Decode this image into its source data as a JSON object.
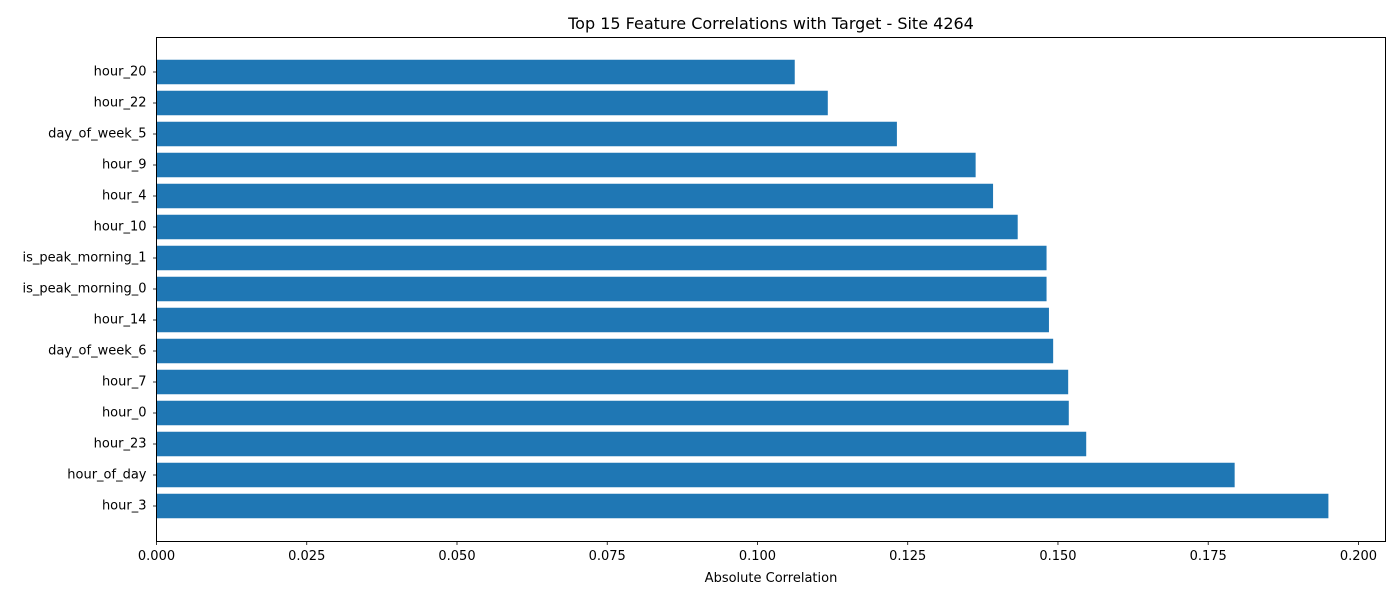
{
  "chart_data": {
    "type": "bar",
    "orientation": "horizontal",
    "title": "Top 15 Feature Correlations with Target - Site 4264",
    "xlabel": "Absolute Correlation",
    "ylabel": "",
    "xlim": [
      0.0,
      0.2045
    ],
    "xticks": [
      "0.000",
      "0.025",
      "0.050",
      "0.075",
      "0.100",
      "0.125",
      "0.150",
      "0.175",
      "0.200"
    ],
    "grid": false,
    "bar_color": "#1f77b4",
    "categories": [
      "hour_20",
      "hour_22",
      "day_of_week_5",
      "hour_9",
      "hour_4",
      "hour_10",
      "is_peak_morning_1",
      "is_peak_morning_0",
      "hour_14",
      "day_of_week_6",
      "hour_7",
      "hour_0",
      "hour_23",
      "hour_of_day",
      "hour_3"
    ],
    "values": [
      0.1062,
      0.1117,
      0.1232,
      0.1363,
      0.1392,
      0.1433,
      0.1481,
      0.1481,
      0.1485,
      0.1492,
      0.1517,
      0.1518,
      0.1547,
      0.1794,
      0.195
    ]
  }
}
